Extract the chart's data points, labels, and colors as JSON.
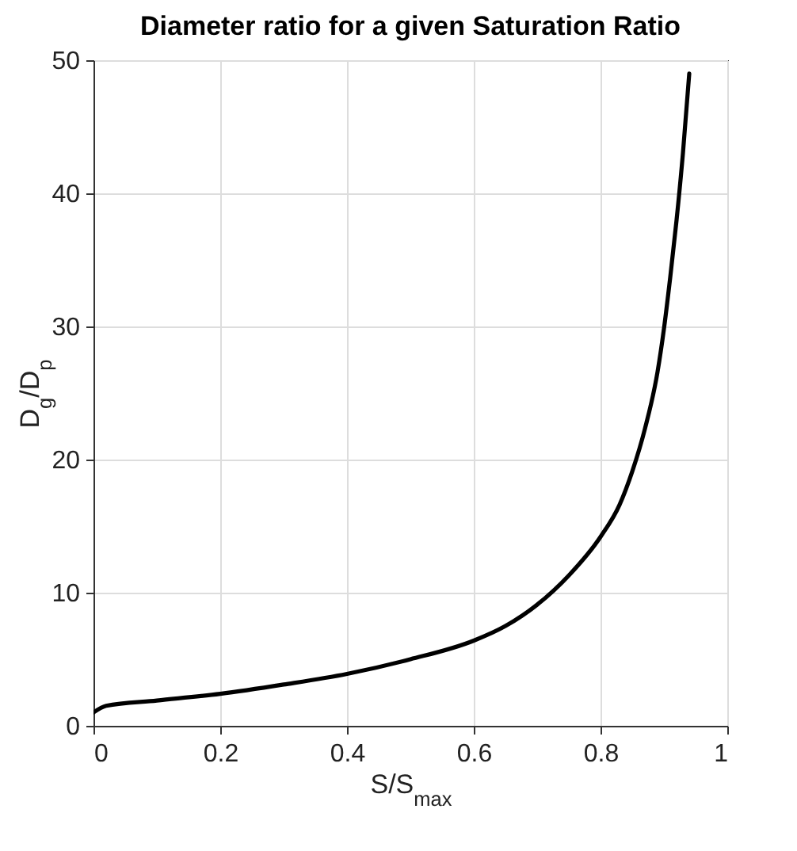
{
  "chart_data": {
    "type": "line",
    "title": "Diameter ratio for a given Saturation Ratio",
    "xlabel": "S/S$_{max}$",
    "ylabel": "D$_{g}$/D$_{p}$",
    "x": [
      0,
      0.02,
      0.1,
      0.2,
      0.3,
      0.4,
      0.5,
      0.6,
      0.65,
      0.7,
      0.75,
      0.8,
      0.83,
      0.85,
      0.87,
      0.89,
      0.9,
      0.91,
      0.92,
      0.93,
      0.94
    ],
    "series": [
      {
        "color": "#000000",
        "values": [
          1.0,
          1.5,
          1.9,
          2.4,
          3.1,
          3.9,
          5.0,
          6.4,
          7.5,
          9.1,
          11.3,
          14.2,
          16.6,
          19.1,
          22.3,
          26.6,
          29.8,
          33.7,
          38,
          43,
          49
        ]
      }
    ],
    "xlim": [
      0,
      1
    ],
    "xticks": [
      0,
      0.2,
      0.4,
      0.6,
      0.8,
      1
    ],
    "ylim": [
      0,
      50
    ],
    "yticks": [
      0,
      10,
      20,
      30,
      40,
      50
    ],
    "grid": true,
    "line_style": "solid",
    "marker": "none"
  }
}
